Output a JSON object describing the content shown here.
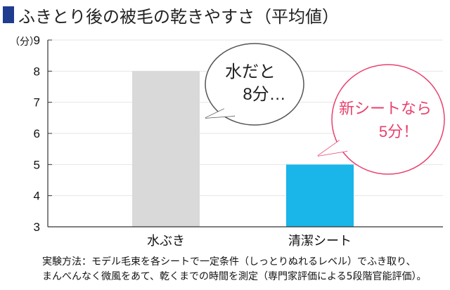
{
  "header": {
    "title": "ふきとり後の被毛の乾きやすさ（平均値）"
  },
  "colors": {
    "title_marker": "#1f3c8f",
    "bar_plain": "#d9d9d9",
    "bar_product": "#1ab6ea",
    "bubble_gray": "#555555",
    "bubble_pink": "#e8416e",
    "axis": "#333333"
  },
  "chart_data": {
    "type": "bar",
    "title": "ふきとり後の被毛の乾きやすさ（平均値）",
    "ylabel": "（分）",
    "ylim": [
      3,
      9
    ],
    "yticks": [
      3,
      4,
      5,
      6,
      7,
      8,
      9
    ],
    "categories": [
      "水ぶき",
      "清潔シート"
    ],
    "values": [
      8,
      5
    ],
    "annotations": [
      {
        "target": "水ぶき",
        "lines": [
          "水だと",
          "8分…"
        ],
        "style": "gray"
      },
      {
        "target": "清潔シート",
        "lines": [
          "新シートなら",
          "5分！"
        ],
        "style": "pink"
      }
    ]
  },
  "footnote": {
    "line1": "実験方法：モデル毛束を各シートで一定条件（しっとりぬれるレベル）でふき取り、",
    "line2": "まんべんなく微風をあて、乾くまでの時間を測定（専門家評価による5段階官能評価）。"
  }
}
